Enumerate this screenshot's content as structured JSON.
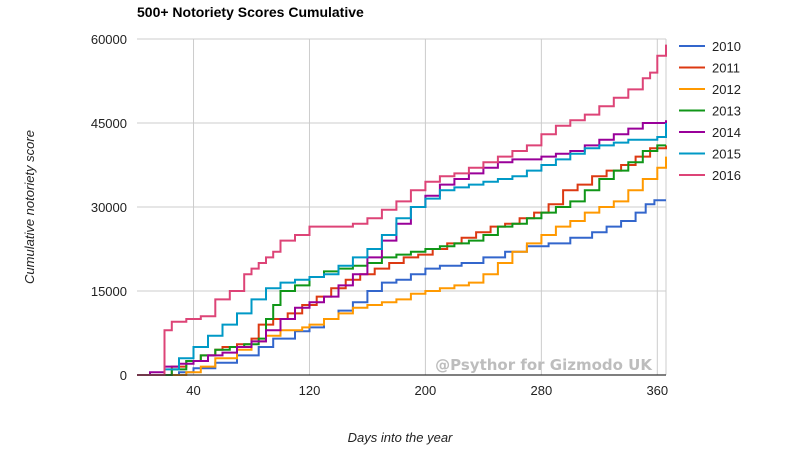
{
  "chart_data": {
    "type": "line",
    "title": "500+ Notoriety Scores Cumulative",
    "xlabel": "Days into the year",
    "ylabel": "Cumulative notoriety score",
    "x_ticks": [
      40,
      120,
      200,
      280,
      360
    ],
    "y_ticks": [
      0,
      15000,
      30000,
      45000,
      60000
    ],
    "y_tick_labels": [
      "0",
      "15000",
      "30000",
      "45000",
      "60000"
    ],
    "xlim": [
      1,
      366
    ],
    "ylim": [
      0,
      60000
    ],
    "grid": true,
    "legend_position": "right",
    "watermark": "@Psythor for Gizmodo UK",
    "series": [
      {
        "name": "2010",
        "color": "#3366cc",
        "points": [
          [
            1,
            0
          ],
          [
            20,
            0
          ],
          [
            30,
            500
          ],
          [
            40,
            1200
          ],
          [
            55,
            2200
          ],
          [
            70,
            3500
          ],
          [
            85,
            5000
          ],
          [
            95,
            6500
          ],
          [
            110,
            7800
          ],
          [
            120,
            8500
          ],
          [
            130,
            10000
          ],
          [
            140,
            11500
          ],
          [
            150,
            13000
          ],
          [
            160,
            15000
          ],
          [
            170,
            16500
          ],
          [
            180,
            17000
          ],
          [
            190,
            18000
          ],
          [
            200,
            19000
          ],
          [
            210,
            19500
          ],
          [
            225,
            20000
          ],
          [
            240,
            21000
          ],
          [
            255,
            22000
          ],
          [
            270,
            23000
          ],
          [
            285,
            23500
          ],
          [
            300,
            24500
          ],
          [
            315,
            25500
          ],
          [
            325,
            26500
          ],
          [
            335,
            27500
          ],
          [
            345,
            29000
          ],
          [
            352,
            30500
          ],
          [
            358,
            31200
          ],
          [
            366,
            31200
          ]
        ]
      },
      {
        "name": "2011",
        "color": "#dc3912",
        "points": [
          [
            1,
            0
          ],
          [
            10,
            0
          ],
          [
            20,
            0
          ],
          [
            25,
            1500
          ],
          [
            35,
            2500
          ],
          [
            45,
            3500
          ],
          [
            55,
            4500
          ],
          [
            60,
            5000
          ],
          [
            70,
            5500
          ],
          [
            80,
            6500
          ],
          [
            85,
            9000
          ],
          [
            95,
            10000
          ],
          [
            105,
            11000
          ],
          [
            115,
            12500
          ],
          [
            125,
            14000
          ],
          [
            135,
            15500
          ],
          [
            145,
            17000
          ],
          [
            155,
            18000
          ],
          [
            165,
            19000
          ],
          [
            175,
            20000
          ],
          [
            185,
            21000
          ],
          [
            195,
            21500
          ],
          [
            205,
            22500
          ],
          [
            215,
            23500
          ],
          [
            225,
            24500
          ],
          [
            235,
            25500
          ],
          [
            245,
            26500
          ],
          [
            255,
            27000
          ],
          [
            265,
            28000
          ],
          [
            275,
            29000
          ],
          [
            285,
            30500
          ],
          [
            295,
            33000
          ],
          [
            305,
            34000
          ],
          [
            315,
            35500
          ],
          [
            325,
            36500
          ],
          [
            335,
            37500
          ],
          [
            345,
            39000
          ],
          [
            355,
            40500
          ],
          [
            366,
            41000
          ]
        ]
      },
      {
        "name": "2012",
        "color": "#ff9900",
        "points": [
          [
            1,
            0
          ],
          [
            25,
            0
          ],
          [
            35,
            500
          ],
          [
            45,
            1500
          ],
          [
            55,
            3000
          ],
          [
            70,
            4500
          ],
          [
            80,
            6000
          ],
          [
            90,
            7000
          ],
          [
            100,
            8000
          ],
          [
            115,
            8500
          ],
          [
            120,
            9000
          ],
          [
            130,
            10000
          ],
          [
            140,
            11000
          ],
          [
            150,
            12000
          ],
          [
            160,
            12500
          ],
          [
            170,
            13000
          ],
          [
            180,
            13500
          ],
          [
            190,
            14500
          ],
          [
            200,
            15000
          ],
          [
            210,
            15500
          ],
          [
            220,
            16000
          ],
          [
            230,
            16500
          ],
          [
            240,
            18000
          ],
          [
            250,
            20000
          ],
          [
            260,
            22000
          ],
          [
            270,
            23500
          ],
          [
            280,
            25000
          ],
          [
            290,
            26500
          ],
          [
            300,
            27500
          ],
          [
            310,
            29000
          ],
          [
            320,
            30000
          ],
          [
            330,
            31000
          ],
          [
            340,
            33000
          ],
          [
            350,
            35000
          ],
          [
            360,
            37000
          ],
          [
            366,
            39000
          ]
        ]
      },
      {
        "name": "2013",
        "color": "#109618",
        "points": [
          [
            1,
            0
          ],
          [
            15,
            0
          ],
          [
            25,
            1000
          ],
          [
            35,
            2500
          ],
          [
            45,
            3500
          ],
          [
            55,
            4500
          ],
          [
            65,
            5000
          ],
          [
            75,
            5500
          ],
          [
            85,
            6500
          ],
          [
            90,
            10000
          ],
          [
            95,
            12500
          ],
          [
            100,
            15000
          ],
          [
            110,
            16000
          ],
          [
            120,
            17500
          ],
          [
            130,
            18500
          ],
          [
            140,
            19000
          ],
          [
            150,
            19500
          ],
          [
            160,
            20000
          ],
          [
            170,
            21000
          ],
          [
            180,
            21500
          ],
          [
            190,
            22000
          ],
          [
            200,
            22500
          ],
          [
            210,
            23000
          ],
          [
            220,
            23500
          ],
          [
            230,
            24000
          ],
          [
            240,
            25000
          ],
          [
            250,
            26500
          ],
          [
            260,
            27000
          ],
          [
            270,
            28000
          ],
          [
            280,
            29000
          ],
          [
            290,
            30000
          ],
          [
            300,
            31000
          ],
          [
            310,
            33000
          ],
          [
            320,
            35000
          ],
          [
            330,
            36500
          ],
          [
            340,
            38000
          ],
          [
            350,
            40000
          ],
          [
            360,
            41000
          ],
          [
            366,
            41000
          ]
        ]
      },
      {
        "name": "2014",
        "color": "#990099",
        "points": [
          [
            1,
            0
          ],
          [
            10,
            500
          ],
          [
            20,
            1500
          ],
          [
            30,
            2000
          ],
          [
            40,
            2500
          ],
          [
            50,
            3500
          ],
          [
            60,
            4000
          ],
          [
            70,
            5000
          ],
          [
            80,
            6000
          ],
          [
            90,
            8000
          ],
          [
            100,
            10000
          ],
          [
            110,
            12000
          ],
          [
            120,
            13000
          ],
          [
            130,
            14000
          ],
          [
            140,
            16000
          ],
          [
            150,
            18000
          ],
          [
            160,
            21000
          ],
          [
            170,
            24000
          ],
          [
            180,
            27000
          ],
          [
            190,
            30000
          ],
          [
            200,
            32000
          ],
          [
            210,
            34000
          ],
          [
            220,
            35000
          ],
          [
            230,
            36000
          ],
          [
            240,
            37000
          ],
          [
            250,
            38000
          ],
          [
            260,
            38500
          ],
          [
            270,
            38500
          ],
          [
            280,
            39000
          ],
          [
            290,
            39500
          ],
          [
            300,
            40000
          ],
          [
            310,
            41000
          ],
          [
            320,
            42000
          ],
          [
            330,
            43000
          ],
          [
            340,
            44000
          ],
          [
            350,
            45000
          ],
          [
            366,
            45500
          ]
        ]
      },
      {
        "name": "2015",
        "color": "#0099c6",
        "points": [
          [
            1,
            0
          ],
          [
            10,
            0
          ],
          [
            20,
            1000
          ],
          [
            30,
            3000
          ],
          [
            40,
            5000
          ],
          [
            50,
            7000
          ],
          [
            60,
            9000
          ],
          [
            70,
            11000
          ],
          [
            80,
            13500
          ],
          [
            90,
            15500
          ],
          [
            100,
            16500
          ],
          [
            110,
            17000
          ],
          [
            120,
            17500
          ],
          [
            130,
            18000
          ],
          [
            140,
            19500
          ],
          [
            150,
            21000
          ],
          [
            160,
            22500
          ],
          [
            170,
            25000
          ],
          [
            180,
            28000
          ],
          [
            190,
            30000
          ],
          [
            200,
            31500
          ],
          [
            210,
            33000
          ],
          [
            220,
            33500
          ],
          [
            230,
            34000
          ],
          [
            240,
            34500
          ],
          [
            250,
            35000
          ],
          [
            260,
            35500
          ],
          [
            270,
            36500
          ],
          [
            280,
            37500
          ],
          [
            290,
            38500
          ],
          [
            300,
            39500
          ],
          [
            310,
            40500
          ],
          [
            320,
            41000
          ],
          [
            330,
            41500
          ],
          [
            340,
            42000
          ],
          [
            350,
            42000
          ],
          [
            360,
            42500
          ],
          [
            366,
            45000
          ]
        ]
      },
      {
        "name": "2016",
        "color": "#dd4477",
        "points": [
          [
            1,
            0
          ],
          [
            15,
            0
          ],
          [
            20,
            8000
          ],
          [
            25,
            9500
          ],
          [
            35,
            10000
          ],
          [
            45,
            10500
          ],
          [
            55,
            13500
          ],
          [
            65,
            15000
          ],
          [
            75,
            18000
          ],
          [
            80,
            19000
          ],
          [
            85,
            20000
          ],
          [
            90,
            21000
          ],
          [
            95,
            22000
          ],
          [
            100,
            24000
          ],
          [
            110,
            25000
          ],
          [
            120,
            26500
          ],
          [
            130,
            26500
          ],
          [
            145,
            26500
          ],
          [
            150,
            27000
          ],
          [
            160,
            28000
          ],
          [
            170,
            29500
          ],
          [
            180,
            31000
          ],
          [
            190,
            33000
          ],
          [
            200,
            34500
          ],
          [
            210,
            35500
          ],
          [
            220,
            36000
          ],
          [
            230,
            37000
          ],
          [
            240,
            38000
          ],
          [
            250,
            39000
          ],
          [
            260,
            40000
          ],
          [
            270,
            41000
          ],
          [
            280,
            43000
          ],
          [
            290,
            44500
          ],
          [
            300,
            45500
          ],
          [
            310,
            46500
          ],
          [
            320,
            48000
          ],
          [
            330,
            49500
          ],
          [
            340,
            51000
          ],
          [
            350,
            53000
          ],
          [
            355,
            54000
          ],
          [
            360,
            57000
          ],
          [
            366,
            59000
          ]
        ]
      }
    ]
  }
}
